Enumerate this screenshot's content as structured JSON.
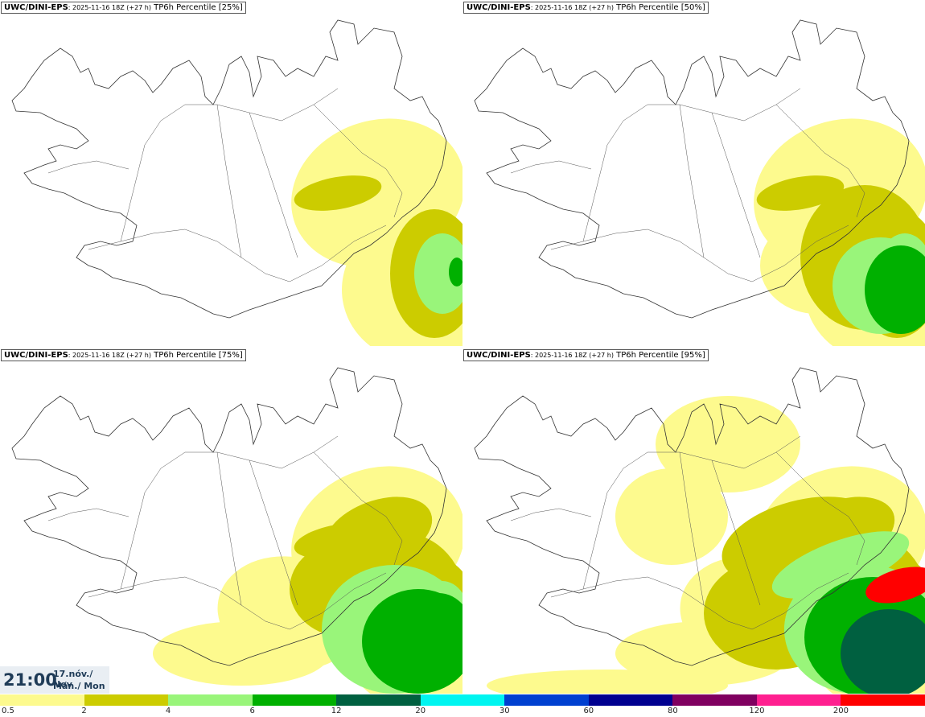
{
  "panels": [
    {
      "source": "UWC/DINI-EPS",
      "run": ": 2025-11-16 18Z (+27 h)",
      "field": " TP6h Percentile [25%]",
      "intensity": 0
    },
    {
      "source": "UWC/DINI-EPS",
      "run": ": 2025-11-16 18Z (+27 h)",
      "field": " TP6h Percentile [50%]",
      "intensity": 1
    },
    {
      "source": "UWC/DINI-EPS",
      "run": ": 2025-11-16 18Z (+27 h)",
      "field": " TP6h Percentile [75%]",
      "intensity": 2
    },
    {
      "source": "UWC/DINI-EPS",
      "run": ": 2025-11-16 18Z (+27 h)",
      "field": " TP6h Percentile [95%]",
      "intensity": 3
    }
  ],
  "valid_time": {
    "time": "21:00",
    "date_line1": "17.nóv./ Nov",
    "date_line2": "Mán./ Mon"
  },
  "legend": {
    "ticks": [
      "0.5",
      "2",
      "4",
      "6",
      "12",
      "20",
      "30",
      "60",
      "80",
      "120",
      "200"
    ],
    "colors": [
      "#fdfa8e",
      "#cccc00",
      "#99f57a",
      "#00b000",
      "#006040",
      "#00f5f0",
      "#0040d0",
      "#000090",
      "#800060",
      "#ff2090",
      "#ff0000"
    ]
  }
}
